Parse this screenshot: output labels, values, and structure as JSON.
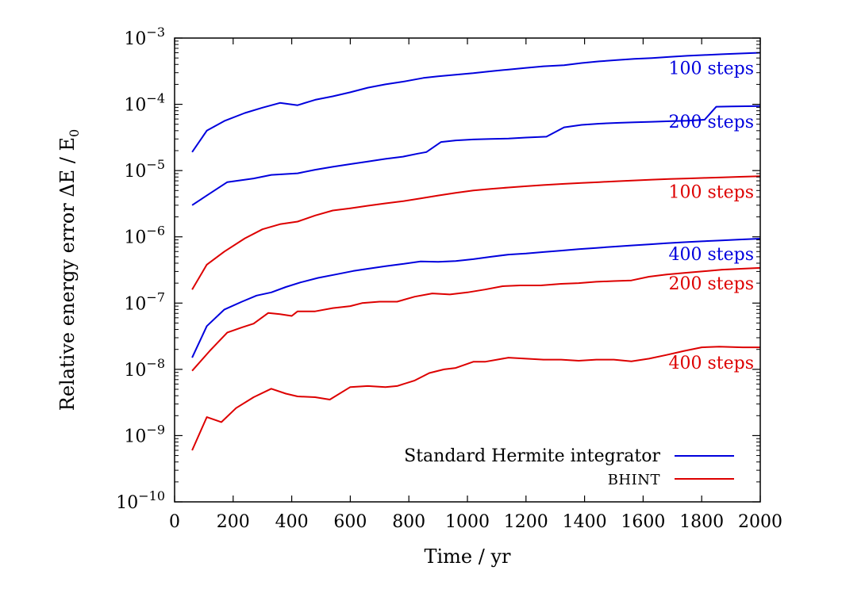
{
  "chart_data": {
    "type": "line",
    "xlabel": "Time / yr",
    "ylabel": "Relative energy error ΔE / E",
    "ylabel_sub": "0",
    "xlim": [
      0,
      2000
    ],
    "ylim": [
      1e-10,
      0.001
    ],
    "yscale": "log",
    "grid": false,
    "legend_position": "bottom-right",
    "x_ticks": [
      0,
      200,
      400,
      600,
      800,
      1000,
      1200,
      1400,
      1600,
      1800,
      2000
    ],
    "x_tick_labels": [
      "0",
      "200",
      "400",
      "600",
      "800",
      "1000",
      "1200",
      "1400",
      "1600",
      "1800",
      "2000"
    ],
    "y_ticks": [
      {
        "value": 0.001,
        "base": "10",
        "exp": "−3"
      },
      {
        "value": 0.0001,
        "base": "10",
        "exp": "−4"
      },
      {
        "value": 1e-05,
        "base": "10",
        "exp": "−5"
      },
      {
        "value": 1e-06,
        "base": "10",
        "exp": "−6"
      },
      {
        "value": 1e-07,
        "base": "10",
        "exp": "−7"
      },
      {
        "value": 1e-08,
        "base": "10",
        "exp": "−8"
      },
      {
        "value": 1e-09,
        "base": "10",
        "exp": "−9"
      },
      {
        "value": 1e-10,
        "base": "10",
        "exp": "−10"
      }
    ],
    "legend": [
      {
        "label": "Standard Hermite integrator",
        "color": "#0000dd",
        "style": "normal"
      },
      {
        "label": "BHINT",
        "color": "#dd0000",
        "style": "smallcaps"
      }
    ],
    "series": [
      {
        "group": "Standard Hermite integrator",
        "label": "100 steps",
        "color": "#0000dd",
        "x": [
          60,
          110,
          170,
          240,
          300,
          360,
          420,
          480,
          540,
          600,
          660,
          720,
          780,
          850,
          900,
          960,
          1020,
          1080,
          1140,
          1200,
          1260,
          1330,
          1390,
          1450,
          1510,
          1570,
          1630,
          1690,
          1750,
          1810,
          1870,
          1930,
          2000
        ],
        "y": [
          1.9e-05,
          4e-05,
          5.6e-05,
          7.4e-05,
          8.9e-05,
          0.000105,
          9.7e-05,
          0.000117,
          0.000132,
          0.000152,
          0.000178,
          0.0002,
          0.00022,
          0.00025,
          0.000265,
          0.00028,
          0.000295,
          0.000315,
          0.000335,
          0.000355,
          0.000375,
          0.00039,
          0.00042,
          0.000445,
          0.000465,
          0.000485,
          0.0005,
          0.00052,
          0.00054,
          0.000555,
          0.00057,
          0.000585,
          0.0006
        ]
      },
      {
        "group": "Standard Hermite integrator",
        "label": "200 steps",
        "color": "#0000dd",
        "x": [
          60,
          110,
          180,
          270,
          330,
          420,
          480,
          540,
          600,
          660,
          720,
          780,
          830,
          860,
          910,
          960,
          1020,
          1080,
          1140,
          1200,
          1270,
          1330,
          1390,
          1450,
          1510,
          1570,
          1630,
          1690,
          1750,
          1810,
          1850,
          1900,
          2000
        ],
        "y": [
          3e-06,
          4.2e-06,
          6.7e-06,
          7.6e-06,
          8.6e-06,
          9.1e-06,
          1.03e-05,
          1.14e-05,
          1.25e-05,
          1.37e-05,
          1.5e-05,
          1.62e-05,
          1.8e-05,
          1.9e-05,
          2.7e-05,
          2.85e-05,
          2.95e-05,
          3e-05,
          3.05e-05,
          3.15e-05,
          3.25e-05,
          4.5e-05,
          4.9e-05,
          5.1e-05,
          5.25e-05,
          5.35e-05,
          5.45e-05,
          5.55e-05,
          5.65e-05,
          5.85e-05,
          9.2e-05,
          9.3e-05,
          9.4e-05
        ]
      },
      {
        "group": "BHINT",
        "label": "100 steps",
        "color": "#dd0000",
        "x": [
          60,
          110,
          170,
          240,
          300,
          360,
          420,
          480,
          540,
          600,
          660,
          720,
          780,
          840,
          900,
          960,
          1020,
          1080,
          1140,
          1200,
          1260,
          1330,
          1390,
          1450,
          1510,
          1570,
          1630,
          1690,
          1750,
          1810,
          1870,
          1930,
          2000
        ],
        "y": [
          1.6e-07,
          3.8e-07,
          6e-07,
          9.5e-07,
          1.3e-06,
          1.55e-06,
          1.7e-06,
          2.1e-06,
          2.5e-06,
          2.7e-06,
          2.95e-06,
          3.2e-06,
          3.45e-06,
          3.8e-06,
          4.2e-06,
          4.6e-06,
          5e-06,
          5.3e-06,
          5.55e-06,
          5.8e-06,
          6.05e-06,
          6.3e-06,
          6.5e-06,
          6.7e-06,
          6.9e-06,
          7.1e-06,
          7.3e-06,
          7.45e-06,
          7.6e-06,
          7.75e-06,
          7.9e-06,
          8.05e-06,
          8.2e-06
        ]
      },
      {
        "group": "Standard Hermite integrator",
        "label": "400 steps",
        "color": "#0000dd",
        "x": [
          60,
          110,
          170,
          230,
          280,
          330,
          380,
          430,
          490,
          550,
          610,
          660,
          720,
          780,
          840,
          900,
          960,
          1020,
          1080,
          1140,
          1200,
          1260,
          1320,
          1380,
          1440,
          1500,
          1560,
          1620,
          1680,
          1740,
          1800,
          1860,
          1930,
          2000
        ],
        "y": [
          1.5e-08,
          4.5e-08,
          8e-08,
          1.05e-07,
          1.3e-07,
          1.45e-07,
          1.75e-07,
          2.05e-07,
          2.4e-07,
          2.7e-07,
          3.05e-07,
          3.3e-07,
          3.6e-07,
          3.9e-07,
          4.25e-07,
          4.2e-07,
          4.3e-07,
          4.6e-07,
          5e-07,
          5.4e-07,
          5.6e-07,
          5.9e-07,
          6.2e-07,
          6.5e-07,
          6.8e-07,
          7.1e-07,
          7.4e-07,
          7.7e-07,
          8e-07,
          8.3e-07,
          8.55e-07,
          8.8e-07,
          9.1e-07,
          9.4e-07
        ]
      },
      {
        "group": "BHINT",
        "label": "200 steps",
        "color": "#dd0000",
        "x": [
          60,
          120,
          180,
          230,
          270,
          320,
          360,
          400,
          420,
          480,
          540,
          600,
          640,
          700,
          760,
          820,
          880,
          940,
          1000,
          1060,
          1120,
          1180,
          1250,
          1320,
          1380,
          1440,
          1500,
          1560,
          1620,
          1680,
          1740,
          1800,
          1870,
          2000
        ],
        "y": [
          9.5e-09,
          1.9e-08,
          3.6e-08,
          4.3e-08,
          4.9e-08,
          7.1e-08,
          6.8e-08,
          6.4e-08,
          7.5e-08,
          7.5e-08,
          8.4e-08,
          9e-08,
          1e-07,
          1.05e-07,
          1.05e-07,
          1.25e-07,
          1.4e-07,
          1.35e-07,
          1.45e-07,
          1.6e-07,
          1.8e-07,
          1.85e-07,
          1.85e-07,
          1.95e-07,
          2e-07,
          2.1e-07,
          2.15e-07,
          2.2e-07,
          2.5e-07,
          2.7e-07,
          2.85e-07,
          3e-07,
          3.2e-07,
          3.4e-07
        ]
      },
      {
        "group": "BHINT",
        "label": "400 steps",
        "color": "#dd0000",
        "x": [
          60,
          110,
          160,
          210,
          270,
          330,
          380,
          420,
          480,
          530,
          600,
          660,
          720,
          760,
          820,
          870,
          920,
          960,
          1020,
          1060,
          1140,
          1200,
          1260,
          1320,
          1380,
          1440,
          1500,
          1560,
          1620,
          1680,
          1740,
          1800,
          1860,
          1940,
          2000
        ],
        "y": [
          6e-10,
          1.9e-09,
          1.6e-09,
          2.6e-09,
          3.8e-09,
          5.1e-09,
          4.3e-09,
          3.9e-09,
          3.8e-09,
          3.5e-09,
          5.4e-09,
          5.6e-09,
          5.4e-09,
          5.6e-09,
          6.8e-09,
          8.8e-09,
          1e-08,
          1.05e-08,
          1.3e-08,
          1.3e-08,
          1.5e-08,
          1.45e-08,
          1.4e-08,
          1.4e-08,
          1.35e-08,
          1.4e-08,
          1.4e-08,
          1.32e-08,
          1.45e-08,
          1.65e-08,
          1.9e-08,
          2.15e-08,
          2.2e-08,
          2.15e-08,
          2.15e-08
        ]
      }
    ]
  }
}
